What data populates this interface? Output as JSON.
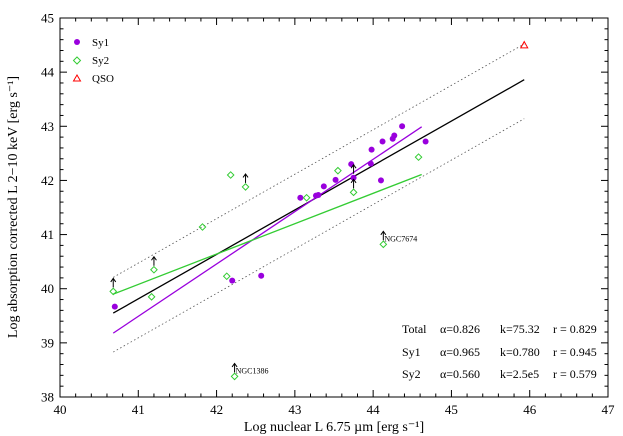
{
  "chart_data": {
    "type": "scatter",
    "title": "",
    "xlabel": "Log nuclear L 6.75 µm [erg s⁻¹]",
    "ylabel": "Log absorption corrected L 2−10 keV [erg s⁻¹]",
    "xlim": [
      40,
      47
    ],
    "ylim": [
      38,
      45
    ],
    "xticks": [
      "40",
      "41",
      "42",
      "43",
      "44",
      "45",
      "46",
      "47"
    ],
    "yticks": [
      "38",
      "39",
      "40",
      "41",
      "42",
      "43",
      "44",
      "45"
    ],
    "legend_position": "top-left",
    "series": [
      {
        "name": "Sy1",
        "marker": "filled-circle",
        "color": "#9900dd",
        "points": [
          {
            "x": 40.7,
            "y": 39.67
          },
          {
            "x": 42.2,
            "y": 40.15
          },
          {
            "x": 42.57,
            "y": 40.24
          },
          {
            "x": 43.07,
            "y": 41.68
          },
          {
            "x": 43.27,
            "y": 41.72
          },
          {
            "x": 43.3,
            "y": 41.73
          },
          {
            "x": 43.37,
            "y": 41.89
          },
          {
            "x": 43.52,
            "y": 42.01
          },
          {
            "x": 43.72,
            "y": 42.3
          },
          {
            "x": 43.75,
            "y": 42.05,
            "limit": "lower"
          },
          {
            "x": 43.97,
            "y": 42.31
          },
          {
            "x": 43.98,
            "y": 42.57
          },
          {
            "x": 44.1,
            "y": 42.0
          },
          {
            "x": 44.12,
            "y": 42.72
          },
          {
            "x": 44.25,
            "y": 42.77
          },
          {
            "x": 44.27,
            "y": 42.83
          },
          {
            "x": 44.37,
            "y": 43.0
          },
          {
            "x": 44.67,
            "y": 42.72
          }
        ]
      },
      {
        "name": "Sy2",
        "marker": "open-diamond",
        "color": "#33cc33",
        "points": [
          {
            "x": 40.68,
            "y": 39.95,
            "limit": "lower"
          },
          {
            "x": 41.17,
            "y": 39.85
          },
          {
            "x": 41.2,
            "y": 40.35,
            "limit": "lower"
          },
          {
            "x": 41.82,
            "y": 41.14
          },
          {
            "x": 42.13,
            "y": 40.23
          },
          {
            "x": 42.18,
            "y": 42.1
          },
          {
            "x": 42.23,
            "y": 38.38,
            "limit": "lower"
          },
          {
            "x": 42.37,
            "y": 41.88,
            "limit": "lower"
          },
          {
            "x": 43.15,
            "y": 41.68
          },
          {
            "x": 43.55,
            "y": 42.18
          },
          {
            "x": 43.75,
            "y": 41.78,
            "limit": "lower"
          },
          {
            "x": 44.13,
            "y": 40.82,
            "limit": "lower"
          },
          {
            "x": 44.58,
            "y": 42.43
          }
        ]
      },
      {
        "name": "QSO",
        "marker": "open-triangle",
        "color": "#ff0000",
        "points": [
          {
            "x": 45.93,
            "y": 44.5
          }
        ]
      }
    ],
    "fits": [
      {
        "name": "Total",
        "color": "#000000",
        "x": [
          40.68,
          45.93
        ],
        "y": [
          39.55,
          43.86
        ],
        "alpha": "α=0.826",
        "k": "k=75.32",
        "r": "r = 0.829"
      },
      {
        "name": "Sy1",
        "color": "#9900dd",
        "x": [
          40.68,
          44.62
        ],
        "y": [
          39.18,
          42.99
        ],
        "alpha": "α=0.965",
        "k": "k=0.780",
        "r": "r = 0.945"
      },
      {
        "name": "Sy2",
        "color": "#33cc33",
        "x": [
          40.68,
          44.62
        ],
        "y": [
          39.9,
          42.11
        ],
        "alpha": "α=0.560",
        "k": "k=2.5e5",
        "r": "r = 0.579"
      }
    ],
    "bounds": [
      {
        "x": [
          40.68,
          45.93
        ],
        "y": [
          40.21,
          44.52
        ]
      },
      {
        "x": [
          40.68,
          45.93
        ],
        "y": [
          38.83,
          43.14
        ]
      }
    ],
    "annotations": [
      {
        "text": "NGC7674",
        "x": 44.13,
        "y": 40.82
      },
      {
        "text": "NGC1386",
        "x": 42.23,
        "y": 38.38
      }
    ]
  }
}
